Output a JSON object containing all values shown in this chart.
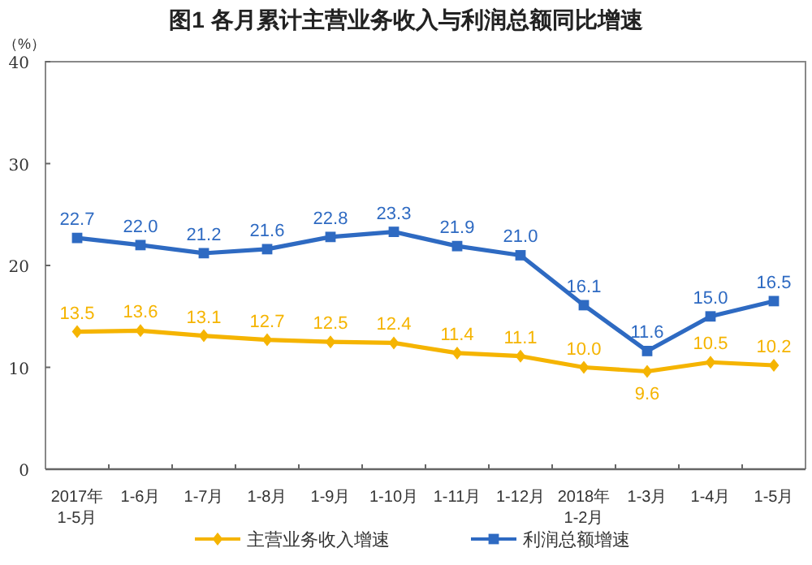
{
  "chart_data": {
    "type": "line",
    "title": "图1 各月累计主营业务收入与利润总额同比增速",
    "ylabel": "（%）",
    "categories": [
      "2017年\n1-5月",
      "1-6月",
      "1-7月",
      "1-8月",
      "1-9月",
      "1-10月",
      "1-11月",
      "1-12月",
      "2018年\n1-2月",
      "1-3月",
      "1-4月",
      "1-5月"
    ],
    "series": [
      {
        "name": "主营业务收入增速",
        "color": "#f5b400",
        "marker": "diamond",
        "values": [
          13.5,
          13.6,
          13.1,
          12.7,
          12.5,
          12.4,
          11.4,
          11.1,
          10.0,
          9.6,
          10.5,
          10.2
        ],
        "value_labels": [
          "13.5",
          "13.6",
          "13.1",
          "12.7",
          "12.5",
          "12.4",
          "11.4",
          "11.1",
          "10.0",
          "9.6",
          "10.5",
          "10.2"
        ]
      },
      {
        "name": "利润总额增速",
        "color": "#2e6ac2",
        "marker": "square",
        "values": [
          22.7,
          22.0,
          21.2,
          21.6,
          22.8,
          23.3,
          21.9,
          21.0,
          16.1,
          11.6,
          15.0,
          16.5
        ],
        "value_labels": [
          "22.7",
          "22.0",
          "21.2",
          "21.6",
          "22.8",
          "23.3",
          "21.9",
          "21.0",
          "16.1",
          "11.6",
          "15.0",
          "16.5"
        ]
      }
    ],
    "ylim": [
      0,
      40
    ],
    "yticks": [
      0,
      10,
      20,
      30,
      40
    ],
    "grid": false,
    "legend": "bottom",
    "line_style": "solid"
  }
}
